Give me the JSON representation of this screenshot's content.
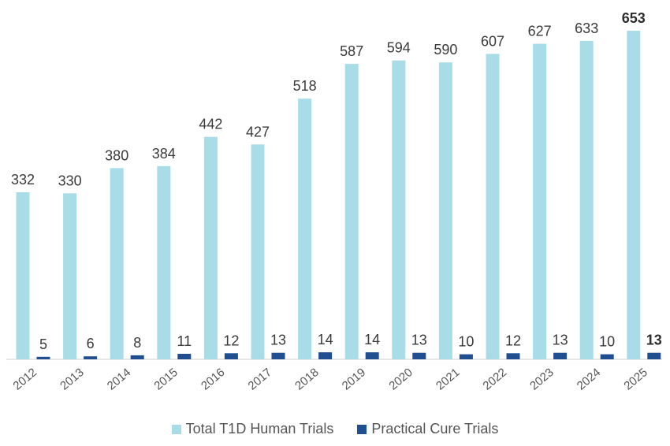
{
  "chart_data": {
    "type": "bar",
    "categories": [
      "2012",
      "2013",
      "2014",
      "2015",
      "2016",
      "2017",
      "2018",
      "2019",
      "2020",
      "2021",
      "2022",
      "2023",
      "2024",
      "2025"
    ],
    "series": [
      {
        "name": "Total T1D Human Trials",
        "color": "#a8dde8",
        "values": [
          332,
          330,
          380,
          384,
          442,
          427,
          518,
          587,
          594,
          590,
          607,
          627,
          633,
          653
        ]
      },
      {
        "name": "Practical Cure Trials",
        "color": "#1f4e91",
        "values": [
          5,
          6,
          8,
          11,
          12,
          13,
          14,
          14,
          13,
          10,
          12,
          13,
          10,
          13
        ]
      }
    ],
    "ylim": [
      0,
      653
    ],
    "grid": false,
    "legend_position": "bottom",
    "highlighted_category": "2025"
  }
}
